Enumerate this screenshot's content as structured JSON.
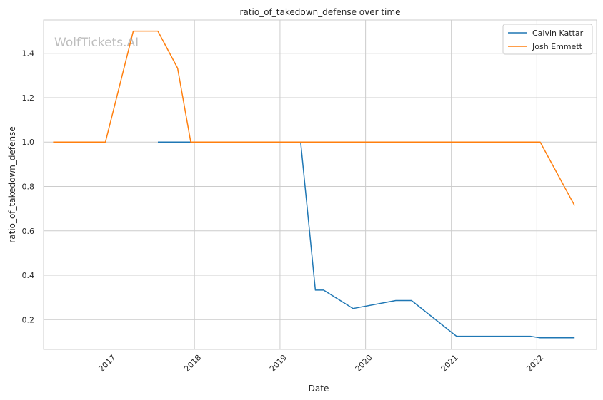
{
  "chart_data": {
    "type": "line",
    "title": "ratio_of_takedown_defense over time",
    "xlabel": "Date",
    "ylabel": "ratio_of_takedown_defense",
    "watermark": "WolfTickets.AI",
    "x_ticks": [
      "2017",
      "2018",
      "2019",
      "2020",
      "2021",
      "2022"
    ],
    "y_ticks": [
      "0.2",
      "0.4",
      "0.6",
      "0.8",
      "1.0",
      "1.2",
      "1.4"
    ],
    "xlim": [
      "2016-03-28",
      "2022-09-13"
    ],
    "ylim": [
      0.066,
      1.55
    ],
    "grid": true,
    "legend_position": "top-right",
    "colors": {
      "Calvin Kattar": "#1f77b4",
      "Josh Emmett": "#ff7f0e",
      "grid": "#cccccc",
      "axes": "#cccccc"
    },
    "series": [
      {
        "name": "Calvin Kattar",
        "points": [
          [
            "2017-07-29",
            1.0
          ],
          [
            "2019-03-30",
            1.0
          ],
          [
            "2019-06-01",
            0.333
          ],
          [
            "2019-07-06",
            0.333
          ],
          [
            "2019-11-09",
            0.25
          ],
          [
            "2020-05-09",
            0.286
          ],
          [
            "2020-07-15",
            0.286
          ],
          [
            "2021-01-23",
            0.125
          ],
          [
            "2021-12-04",
            0.125
          ],
          [
            "2022-01-15",
            0.118
          ],
          [
            "2022-06-11",
            0.118
          ]
        ]
      },
      {
        "name": "Josh Emmett",
        "points": [
          [
            "2016-05-08",
            1.0
          ],
          [
            "2016-12-17",
            1.0
          ],
          [
            "2017-04-15",
            1.5
          ],
          [
            "2017-07-29",
            1.5
          ],
          [
            "2017-10-21",
            1.333
          ],
          [
            "2017-12-16",
            1.0
          ],
          [
            "2019-03-30",
            1.0
          ],
          [
            "2022-01-15",
            1.0
          ],
          [
            "2022-06-11",
            0.714
          ]
        ]
      }
    ]
  }
}
